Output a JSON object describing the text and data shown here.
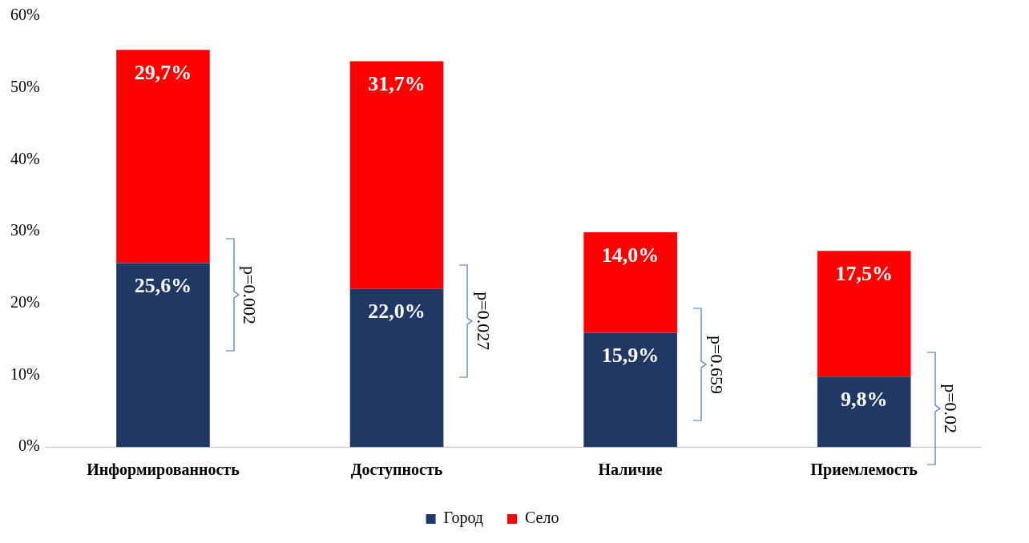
{
  "chart_data": {
    "type": "bar",
    "stacked": true,
    "categories": [
      "Информированность",
      "Доступность",
      "Наличие",
      "Приемлемость"
    ],
    "series": [
      {
        "name": "Город",
        "color": "#203864",
        "values": [
          25.6,
          22.0,
          15.9,
          9.8
        ],
        "value_labels": [
          "25,6%",
          "22,0%",
          "15,9%",
          "9,8%"
        ]
      },
      {
        "name": "Село",
        "color": "#ff0000",
        "values": [
          29.7,
          31.7,
          14.0,
          17.5
        ],
        "value_labels": [
          "29,7%",
          "31,7%",
          "14,0%",
          "17,5%"
        ]
      }
    ],
    "ylim": [
      0,
      60
    ],
    "yticks": [
      {
        "value": 0,
        "label": "0%"
      },
      {
        "value": 10,
        "label": "10%"
      },
      {
        "value": 20,
        "label": "20%"
      },
      {
        "value": 30,
        "label": "30%"
      },
      {
        "value": 40,
        "label": "40%"
      },
      {
        "value": 50,
        "label": "50%"
      },
      {
        "value": 60,
        "label": "60%"
      }
    ],
    "grid": false,
    "legend": "bottom",
    "annotations": [
      "p=0.002",
      "p=0.027",
      "p=0.659",
      "p=0.02"
    ]
  }
}
